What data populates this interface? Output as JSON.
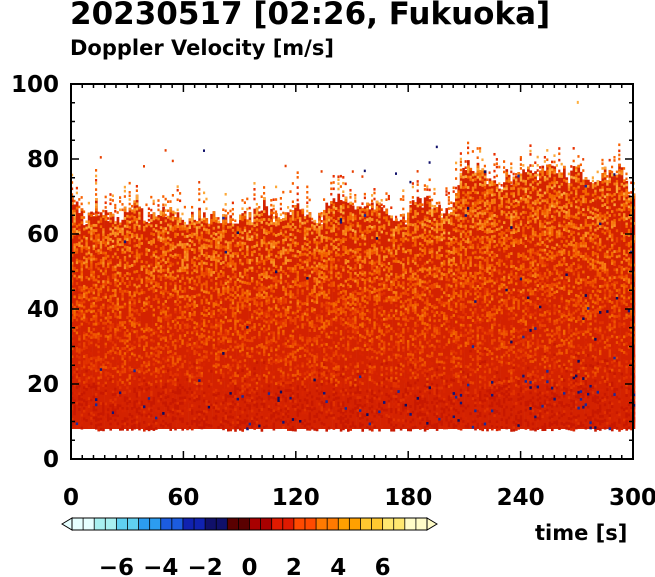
{
  "title": "20230517 [02:26, Fukuoka]",
  "subtitle": "Doppler Velocity [m/s]",
  "chart_data": {
    "type": "heatmap",
    "title": "20230517 [02:26, Fukuoka]",
    "subtitle": "Doppler Velocity [m/s]",
    "xlabel": "time [s]",
    "ylabel": "",
    "xlim": [
      0,
      300
    ],
    "ylim": [
      0,
      100
    ],
    "x_ticks": [
      0,
      60,
      120,
      180,
      240,
      300
    ],
    "y_ticks": [
      0,
      20,
      40,
      60,
      80,
      100
    ],
    "x_tick_labels": [
      "0",
      "60",
      "120",
      "180",
      "240",
      "300"
    ],
    "y_tick_labels": [
      "0",
      "20",
      "40",
      "60",
      "80",
      "100"
    ],
    "data_height_range": [
      8,
      85
    ],
    "typical_echo_top": 70,
    "colorbar": {
      "label": "Doppler Velocity [m/s]",
      "range": [
        -8,
        8
      ],
      "ticks": [
        -6,
        -4,
        -2,
        0,
        2,
        4,
        6
      ],
      "tick_labels": [
        "−6",
        "−4",
        "−2",
        "0",
        "2",
        "4",
        "6"
      ],
      "colors": [
        "#e6ffff",
        "#a8f0f0",
        "#60d0f0",
        "#2c9cf0",
        "#1c5ce0",
        "#1022b0",
        "#10106a",
        "#5a0000",
        "#a80000",
        "#e01a00",
        "#ff4a00",
        "#ff7a00",
        "#ffa000",
        "#ffc830",
        "#ffe870",
        "#fffcc8"
      ]
    }
  }
}
